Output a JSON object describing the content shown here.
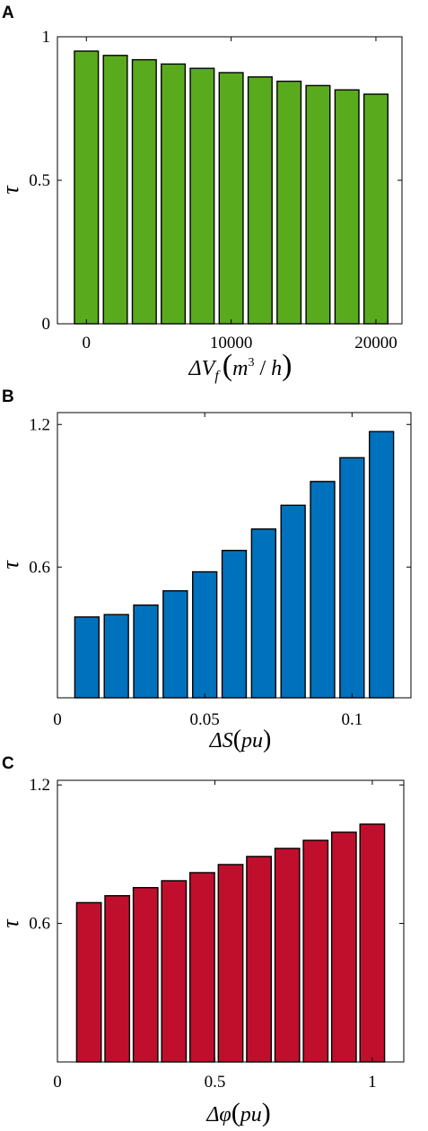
{
  "chart_data": [
    {
      "type": "bar",
      "panel": "A",
      "bar_color": "#5aaa1e",
      "xlabel": "ΔV_f (m³ / h)",
      "xlabel_parts": {
        "delta": "Δ",
        "var": "V",
        "sub": "f",
        "lp": "(",
        "unit_m": "m",
        "sup": "3",
        "slash": " / ",
        "unit_h": "h",
        "rp": ")"
      },
      "ylabel": "τ",
      "x": [
        0,
        2000,
        4000,
        6000,
        8000,
        10000,
        12000,
        14000,
        16000,
        18000,
        20000
      ],
      "values": [
        0.95,
        0.935,
        0.92,
        0.905,
        0.89,
        0.875,
        0.86,
        0.845,
        0.83,
        0.815,
        0.8
      ],
      "xlim": [
        -2000,
        21800
      ],
      "ylim": [
        0,
        1
      ],
      "xticks": [
        0,
        10000,
        20000
      ],
      "xtick_labels": [
        "0",
        "10000",
        "20000"
      ],
      "yticks": [
        0,
        0.5,
        1
      ],
      "ytick_labels": [
        "0",
        "0.5",
        "1"
      ]
    },
    {
      "type": "bar",
      "panel": "B",
      "bar_color": "#0072bd",
      "xlabel": "ΔS(pu)",
      "xlabel_parts": {
        "delta": "Δ",
        "var": "S",
        "lp": "(",
        "unit": "pu",
        "rp": ")"
      },
      "ylabel": "τ",
      "x": [
        0.01,
        0.02,
        0.03,
        0.04,
        0.05,
        0.06,
        0.07,
        0.08,
        0.09,
        0.1,
        0.11
      ],
      "values": [
        0.39,
        0.4,
        0.44,
        0.5,
        0.58,
        0.67,
        0.76,
        0.86,
        0.96,
        1.06,
        1.17
      ],
      "xlim": [
        0,
        0.12
      ],
      "ylim": [
        0.05,
        1.25
      ],
      "xticks": [
        0,
        0.05,
        0.1
      ],
      "xtick_labels": [
        "0",
        "0.05",
        "0.1"
      ],
      "yticks": [
        0.6,
        1.2
      ],
      "ytick_labels": [
        "0.6",
        "1.2"
      ]
    },
    {
      "type": "bar",
      "panel": "C",
      "bar_color": "#c00f2d",
      "xlabel": "Δφ(pu)",
      "xlabel_parts": {
        "delta": "Δ",
        "var": "φ",
        "lp": "(",
        "unit": "pu",
        "rp": ")"
      },
      "ylabel": "τ",
      "x": [
        0.1,
        0.19,
        0.28,
        0.37,
        0.46,
        0.55,
        0.64,
        0.73,
        0.82,
        0.91,
        1.0
      ],
      "values": [
        0.69,
        0.72,
        0.755,
        0.785,
        0.82,
        0.855,
        0.89,
        0.925,
        0.96,
        0.995,
        1.03
      ],
      "xlim": [
        0,
        1.1
      ],
      "ylim": [
        0,
        1.22
      ],
      "xticks": [
        0,
        0.5,
        1
      ],
      "xtick_labels": [
        "0",
        "0.5",
        "1"
      ],
      "yticks": [
        0.6,
        1.2
      ],
      "ytick_labels": [
        "0.6",
        "1.2"
      ]
    }
  ]
}
